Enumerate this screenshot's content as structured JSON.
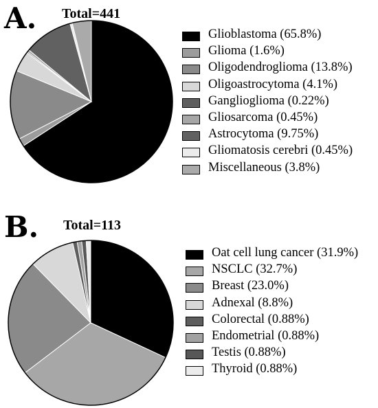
{
  "chart_data": [
    {
      "type": "pie",
      "panel_label": "A.",
      "title": "Total=441",
      "categories": [
        "Glioblastoma (65.8%)",
        "Glioma (1.6%)",
        "Oligodendroglioma (13.8%)",
        "Oligoastrocytoma (4.1%)",
        "Ganglioglioma (0.22%)",
        "Gliosarcoma (0.45%)",
        "Astrocytoma (9.75%)",
        "Gliomatosis cerebri (0.45%)",
        "Miscellaneous (3.8%)"
      ],
      "values": [
        65.8,
        1.6,
        13.8,
        4.1,
        0.22,
        0.45,
        9.75,
        0.45,
        3.8
      ],
      "colors": [
        "#000000",
        "#9c9c9c",
        "#8a8a8a",
        "#d8d8d8",
        "#5e5e5e",
        "#a6a6a6",
        "#616161",
        "#ececec",
        "#aaaaaa"
      ],
      "legend_position": "right",
      "start": "12 o'clock",
      "direction": "clockwise"
    },
    {
      "type": "pie",
      "panel_label": "B.",
      "title": "Total=113",
      "categories": [
        "Oat cell lung cancer (31.9%)",
        "NSCLC (32.7%)",
        "Breast (23.0%)",
        "Adnexal (8.8%)",
        "Colorectal (0.88%)",
        "Endometrial (0.88%)",
        "Testis (0.88%)",
        "Thyroid (0.88%)"
      ],
      "values": [
        31.9,
        32.7,
        23.0,
        8.8,
        0.88,
        0.88,
        0.88,
        0.88
      ],
      "colors": [
        "#000000",
        "#a7a7a7",
        "#8a8a8a",
        "#d8d8d8",
        "#5e5e5e",
        "#a2a2a2",
        "#575757",
        "#ececec"
      ],
      "legend_position": "right",
      "start": "12 o'clock",
      "direction": "clockwise"
    }
  ]
}
